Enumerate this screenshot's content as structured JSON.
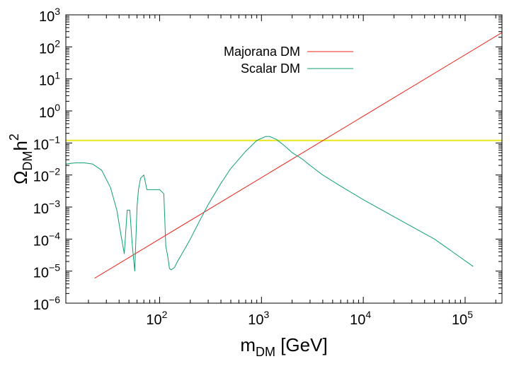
{
  "chart_data": {
    "type": "line",
    "title": "",
    "x_scale": "log",
    "y_scale": "log",
    "xlim": [
      12,
      230000
    ],
    "ylim": [
      1e-06,
      1000
    ],
    "grid": false,
    "legend_position": "top-center",
    "xlabel": {
      "main": "m",
      "sub": "DM",
      "tail": " [GeV]"
    },
    "ylabel": {
      "main": "Ω",
      "sub": "DM",
      "tail": "h",
      "sup": "2"
    },
    "x_ticks": [
      {
        "value": 100,
        "base": "10",
        "exp": "2"
      },
      {
        "value": 1000,
        "base": "10",
        "exp": "3"
      },
      {
        "value": 10000,
        "base": "10",
        "exp": "4"
      },
      {
        "value": 100000,
        "base": "10",
        "exp": "5"
      }
    ],
    "y_ticks": [
      {
        "value": 1e-06,
        "base": "10",
        "exp": "−6"
      },
      {
        "value": 1e-05,
        "base": "10",
        "exp": "−5"
      },
      {
        "value": 0.0001,
        "base": "10",
        "exp": "−4"
      },
      {
        "value": 0.001,
        "base": "10",
        "exp": "−3"
      },
      {
        "value": 0.01,
        "base": "10",
        "exp": "−2"
      },
      {
        "value": 0.1,
        "base": "10",
        "exp": "−1"
      },
      {
        "value": 1,
        "base": "10",
        "exp": "0"
      },
      {
        "value": 10,
        "base": "10",
        "exp": "1"
      },
      {
        "value": 100,
        "base": "10",
        "exp": "2"
      },
      {
        "value": 1000,
        "base": "10",
        "exp": "3"
      }
    ],
    "reference_line": {
      "y": 0.12,
      "color": "#e6e61a"
    },
    "series": [
      {
        "name": "Majorana DM",
        "color": "#e8251b",
        "x": [
          23,
          230000
        ],
        "y": [
          6e-06,
          280
        ]
      },
      {
        "name": "Scalar DM",
        "color": "#0f9f73",
        "x": [
          12,
          15,
          18,
          22,
          27,
          33,
          38,
          42,
          45,
          48,
          51,
          54,
          57,
          60,
          62,
          65,
          70,
          75,
          80,
          90,
          100,
          110,
          115,
          120,
          125,
          130,
          140,
          150,
          170,
          200,
          250,
          300,
          400,
          500,
          700,
          900,
          1100,
          1200,
          1400,
          1700,
          2000,
          2500,
          3000,
          4000,
          6000,
          10000,
          20000,
          50000,
          120000
        ],
        "y": [
          0.022,
          0.024,
          0.024,
          0.022,
          0.014,
          0.004,
          0.0008,
          0.00012,
          3.5e-05,
          0.0008,
          0.0008,
          6e-05,
          1e-05,
          0.001,
          0.0035,
          0.008,
          0.01,
          0.0035,
          0.0035,
          0.0035,
          0.0035,
          0.0026,
          6e-05,
          3e-05,
          1.2e-05,
          1.1e-05,
          1.3e-05,
          2e-05,
          4e-05,
          0.0001,
          0.0004,
          0.0012,
          0.0055,
          0.016,
          0.055,
          0.12,
          0.16,
          0.16,
          0.13,
          0.08,
          0.05,
          0.032,
          0.02,
          0.01,
          0.0045,
          0.0017,
          0.0005,
          0.0001,
          1.4e-05
        ]
      }
    ]
  }
}
